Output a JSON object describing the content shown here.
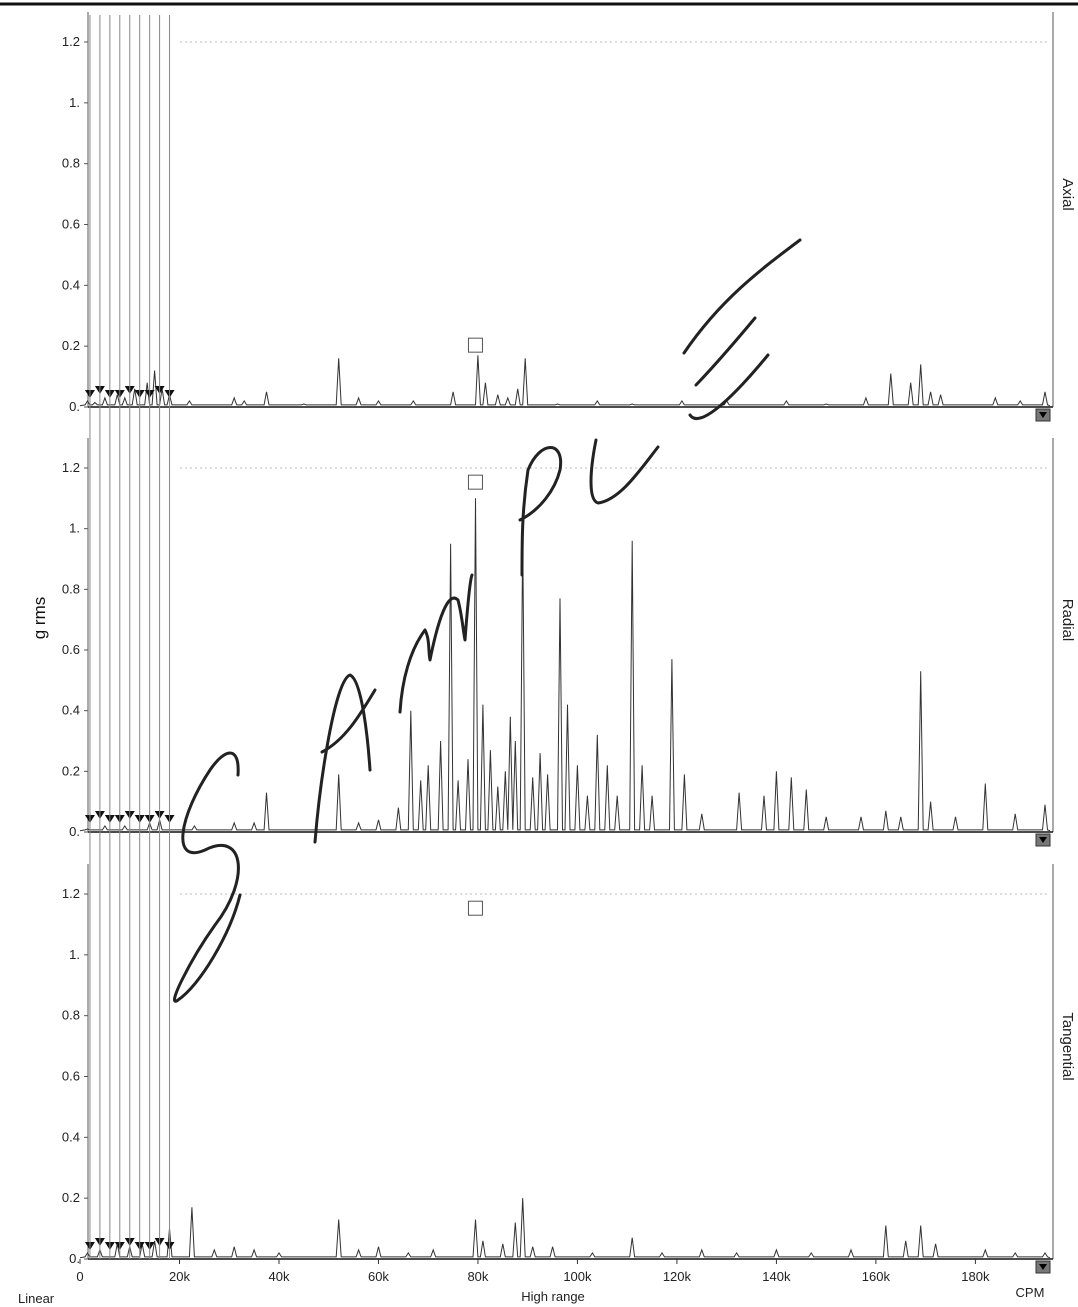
{
  "chart_data": {
    "type": "line",
    "ylabel": "g rms",
    "x_unit_label": "CPM",
    "x_scale_label": "Linear",
    "x_range_label": "High range",
    "xlim": [
      0,
      195000
    ],
    "ylim": [
      0,
      1.25
    ],
    "x_ticks": [
      0,
      20000,
      40000,
      60000,
      80000,
      100000,
      120000,
      140000,
      160000,
      180000
    ],
    "x_tick_labels": [
      "0",
      "20k",
      "40k",
      "60k",
      "80k",
      "100k",
      "120k",
      "140k",
      "160k",
      "180k"
    ],
    "y_ticks": [
      0,
      0.2,
      0.4,
      0.6,
      0.8,
      1.0,
      1.2
    ],
    "y_tick_labels": [
      "0.",
      "0.2",
      "0.4",
      "0.6",
      "0.8",
      "1.",
      "1.2"
    ],
    "grid": false,
    "marker_cursor_cpm": [
      2000,
      4000,
      6000,
      8000,
      10000,
      12000,
      14000,
      16000,
      18000
    ],
    "panels": [
      {
        "name": "Axial",
        "peaks": [
          [
            1500,
            0.02
          ],
          [
            3000,
            0.015
          ],
          [
            5000,
            0.03
          ],
          [
            7500,
            0.04
          ],
          [
            9000,
            0.03
          ],
          [
            11000,
            0.06
          ],
          [
            13500,
            0.08
          ],
          [
            15000,
            0.12
          ],
          [
            16500,
            0.06
          ],
          [
            18000,
            0.04
          ],
          [
            22000,
            0.02
          ],
          [
            31000,
            0.03
          ],
          [
            33000,
            0.02
          ],
          [
            37500,
            0.05
          ],
          [
            45000,
            0.01
          ],
          [
            52000,
            0.16
          ],
          [
            56000,
            0.03
          ],
          [
            60000,
            0.02
          ],
          [
            67000,
            0.02
          ],
          [
            75000,
            0.05
          ],
          [
            80000,
            0.17
          ],
          [
            81500,
            0.08
          ],
          [
            84000,
            0.04
          ],
          [
            86000,
            0.03
          ],
          [
            88000,
            0.06
          ],
          [
            89500,
            0.16
          ],
          [
            96000,
            0.01
          ],
          [
            104000,
            0.02
          ],
          [
            111000,
            0.01
          ],
          [
            121000,
            0.02
          ],
          [
            130000,
            0.02
          ],
          [
            142000,
            0.02
          ],
          [
            150000,
            0.01
          ],
          [
            158000,
            0.03
          ],
          [
            163000,
            0.11
          ],
          [
            167000,
            0.08
          ],
          [
            169000,
            0.14
          ],
          [
            171000,
            0.05
          ],
          [
            173000,
            0.04
          ],
          [
            184000,
            0.03
          ],
          [
            189000,
            0.02
          ],
          [
            194000,
            0.05
          ]
        ]
      },
      {
        "name": "Radial",
        "peaks": [
          [
            1500,
            0.01
          ],
          [
            5000,
            0.02
          ],
          [
            9000,
            0.02
          ],
          [
            14000,
            0.03
          ],
          [
            16000,
            0.04
          ],
          [
            23000,
            0.02
          ],
          [
            31000,
            0.03
          ],
          [
            35000,
            0.03
          ],
          [
            37500,
            0.13
          ],
          [
            52000,
            0.19
          ],
          [
            56000,
            0.03
          ],
          [
            60000,
            0.04
          ],
          [
            64000,
            0.08
          ],
          [
            66500,
            0.4
          ],
          [
            68500,
            0.17
          ],
          [
            70000,
            0.22
          ],
          [
            72500,
            0.3
          ],
          [
            74500,
            0.95
          ],
          [
            76000,
            0.17
          ],
          [
            78000,
            0.24
          ],
          [
            79500,
            1.1
          ],
          [
            81000,
            0.42
          ],
          [
            82500,
            0.27
          ],
          [
            84000,
            0.15
          ],
          [
            85500,
            0.2
          ],
          [
            86500,
            0.38
          ],
          [
            87500,
            0.3
          ],
          [
            89000,
            0.98
          ],
          [
            91000,
            0.18
          ],
          [
            92500,
            0.26
          ],
          [
            94000,
            0.19
          ],
          [
            96500,
            0.77
          ],
          [
            98000,
            0.42
          ],
          [
            100000,
            0.22
          ],
          [
            102000,
            0.12
          ],
          [
            104000,
            0.32
          ],
          [
            106000,
            0.22
          ],
          [
            108000,
            0.12
          ],
          [
            111000,
            0.96
          ],
          [
            113000,
            0.22
          ],
          [
            115000,
            0.12
          ],
          [
            119000,
            0.57
          ],
          [
            121500,
            0.19
          ],
          [
            125000,
            0.06
          ],
          [
            132500,
            0.13
          ],
          [
            137500,
            0.12
          ],
          [
            140000,
            0.2
          ],
          [
            143000,
            0.18
          ],
          [
            146000,
            0.14
          ],
          [
            150000,
            0.05
          ],
          [
            157000,
            0.05
          ],
          [
            162000,
            0.07
          ],
          [
            165000,
            0.05
          ],
          [
            169000,
            0.53
          ],
          [
            171000,
            0.1
          ],
          [
            176000,
            0.05
          ],
          [
            182000,
            0.16
          ],
          [
            188000,
            0.06
          ],
          [
            194000,
            0.09
          ]
        ]
      },
      {
        "name": "Tangential",
        "peaks": [
          [
            1500,
            0.02
          ],
          [
            4000,
            0.03
          ],
          [
            7500,
            0.05
          ],
          [
            10000,
            0.04
          ],
          [
            12500,
            0.05
          ],
          [
            15000,
            0.06
          ],
          [
            18000,
            0.1
          ],
          [
            22500,
            0.17
          ],
          [
            27000,
            0.03
          ],
          [
            31000,
            0.04
          ],
          [
            35000,
            0.03
          ],
          [
            40000,
            0.02
          ],
          [
            52000,
            0.13
          ],
          [
            56000,
            0.03
          ],
          [
            60000,
            0.04
          ],
          [
            66000,
            0.02
          ],
          [
            71000,
            0.03
          ],
          [
            79500,
            0.13
          ],
          [
            81000,
            0.06
          ],
          [
            85000,
            0.05
          ],
          [
            87500,
            0.12
          ],
          [
            89000,
            0.2
          ],
          [
            91000,
            0.04
          ],
          [
            95000,
            0.04
          ],
          [
            103000,
            0.02
          ],
          [
            111000,
            0.07
          ],
          [
            117000,
            0.02
          ],
          [
            125000,
            0.03
          ],
          [
            132000,
            0.02
          ],
          [
            140000,
            0.03
          ],
          [
            147000,
            0.02
          ],
          [
            155000,
            0.03
          ],
          [
            162000,
            0.11
          ],
          [
            166000,
            0.06
          ],
          [
            169000,
            0.11
          ],
          [
            172000,
            0.05
          ],
          [
            182000,
            0.03
          ],
          [
            188000,
            0.02
          ],
          [
            194000,
            0.02
          ]
        ]
      }
    ],
    "sample_mark": "SAMPLE"
  }
}
